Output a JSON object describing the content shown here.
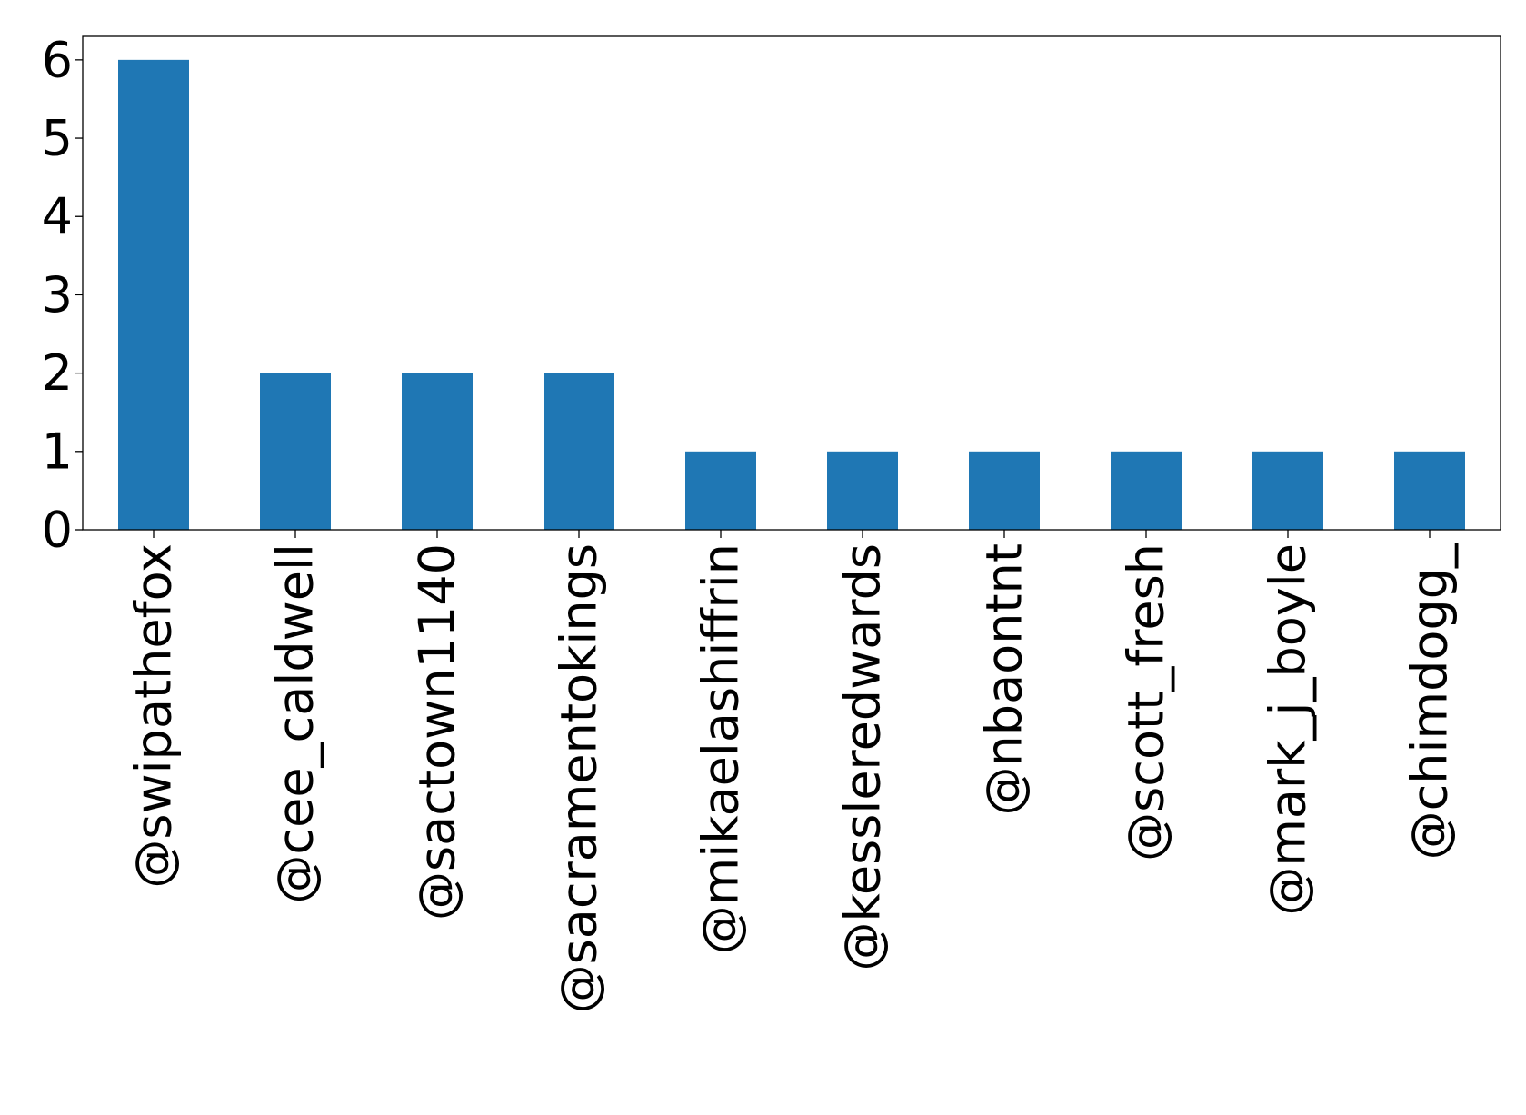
{
  "chart_data": {
    "type": "bar",
    "title": "",
    "xlabel": "",
    "ylabel": "",
    "categories": [
      "@swipathefox",
      "@cee_caldwell",
      "@sactown1140",
      "@sacramentokings",
      "@mikaelashiffrin",
      "@kessleredwards",
      "@nbaontnt",
      "@scott_fresh",
      "@mark_j_boyle",
      "@chimdogg_"
    ],
    "values": [
      6,
      2,
      2,
      2,
      1,
      1,
      1,
      1,
      1,
      1
    ],
    "ylim": [
      0,
      6.3
    ],
    "yticks": [
      0,
      1,
      2,
      3,
      4,
      5,
      6
    ],
    "grid": false,
    "legend": "none",
    "bar_color": "#1f77b4",
    "tick_label_rotation": "vertical"
  }
}
